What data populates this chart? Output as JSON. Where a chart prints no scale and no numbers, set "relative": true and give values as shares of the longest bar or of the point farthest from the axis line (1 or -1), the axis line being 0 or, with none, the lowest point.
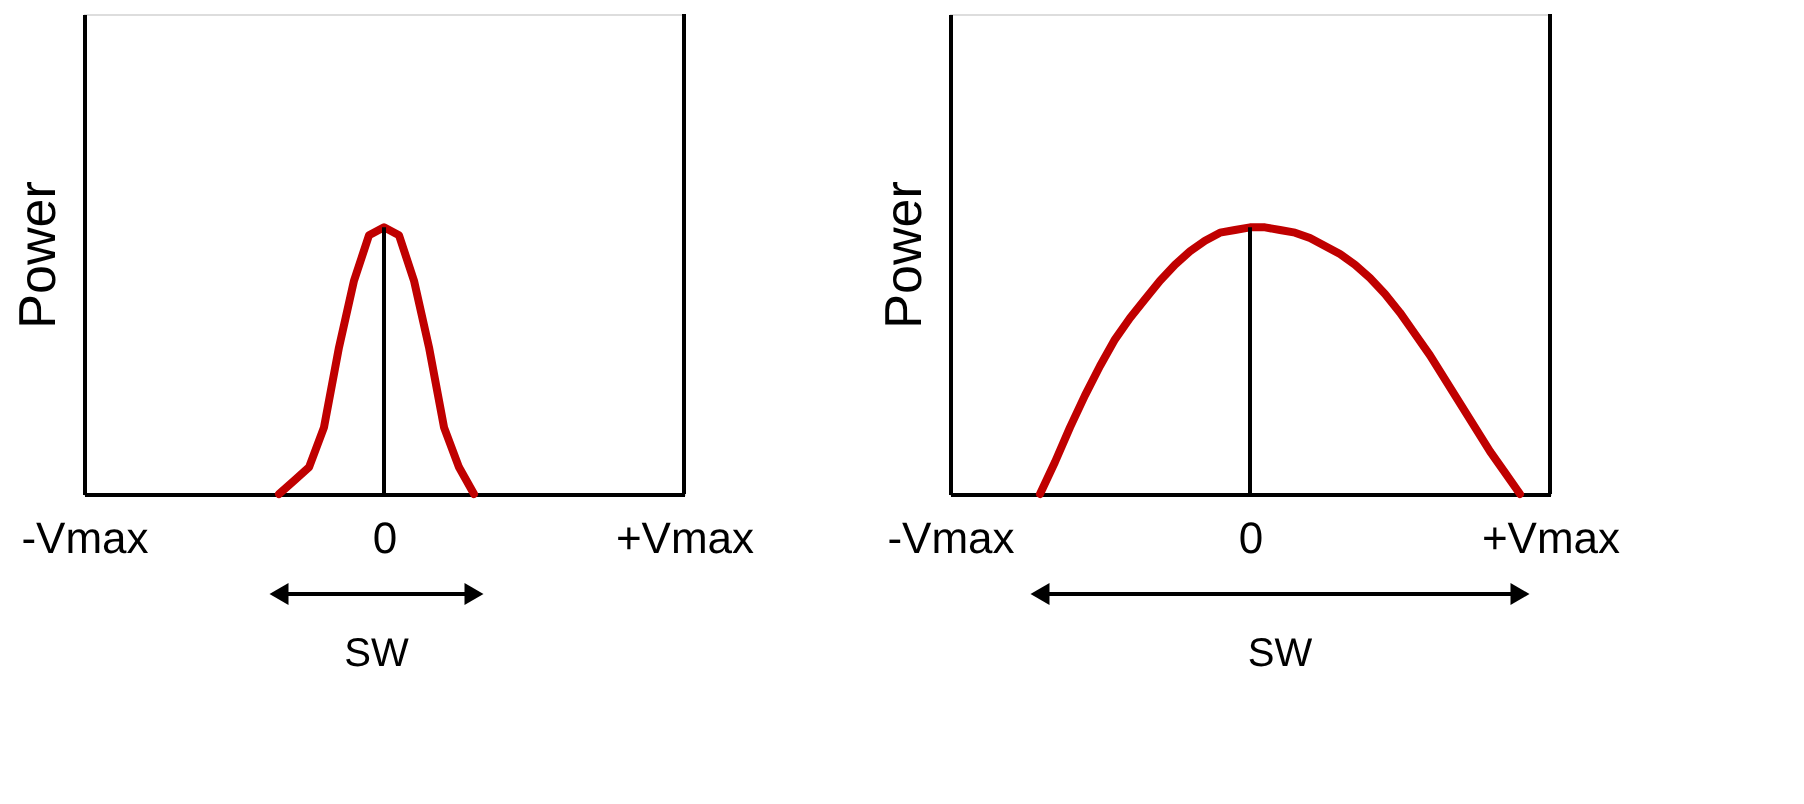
{
  "chart_data": [
    {
      "type": "line",
      "ylabel": "Power",
      "relative": true,
      "tick_labels": "x",
      "categories": [
        "-Vmax",
        null,
        null,
        null,
        null,
        null,
        null,
        null,
        null,
        null,
        null,
        null,
        null,
        null,
        null,
        null,
        null,
        null,
        null,
        null,
        "0",
        null,
        null,
        null,
        null,
        null,
        null,
        null,
        null,
        null,
        null,
        null,
        null,
        null,
        null,
        null,
        null,
        null,
        null,
        null,
        "+Vmax"
      ],
      "series": [
        {
          "color": "#c00000",
          "values": [
            null,
            null,
            null,
            null,
            null,
            null,
            null,
            null,
            null,
            null,
            null,
            null,
            null,
            0,
            0.05,
            0.1,
            0.25,
            0.55,
            0.8,
            0.97,
            1,
            0.97,
            0.8,
            0.55,
            0.25,
            0.1,
            0,
            null,
            null,
            null,
            null,
            null,
            null,
            null,
            null,
            null,
            null,
            null,
            null,
            null,
            null
          ]
        }
      ],
      "ref_lines": [
        {
          "axis": "x",
          "value": "0",
          "color": "#000000"
        }
      ],
      "annotations": [
        "SW"
      ]
    },
    {
      "type": "line",
      "ylabel": "Power",
      "relative": true,
      "tick_labels": "x",
      "categories": [
        "-Vmax",
        null,
        null,
        null,
        null,
        null,
        null,
        null,
        null,
        null,
        null,
        null,
        null,
        null,
        null,
        null,
        null,
        null,
        null,
        null,
        "0",
        null,
        null,
        null,
        null,
        null,
        null,
        null,
        null,
        null,
        null,
        null,
        null,
        null,
        null,
        null,
        null,
        null,
        null,
        null,
        "+Vmax"
      ],
      "series": [
        {
          "color": "#c00000",
          "values": [
            null,
            null,
            null,
            null,
            null,
            null,
            0,
            0.12,
            0.25,
            0.37,
            0.48,
            0.58,
            0.66,
            0.73,
            0.8,
            0.86,
            0.91,
            0.95,
            0.98,
            0.99,
            1,
            1,
            0.99,
            0.98,
            0.96,
            0.93,
            0.9,
            0.86,
            0.81,
            0.75,
            0.68,
            0.6,
            0.52,
            0.43,
            0.34,
            0.25,
            0.16,
            0.08,
            0,
            null,
            null
          ]
        }
      ],
      "ref_lines": [
        {
          "axis": "x",
          "value": "0",
          "color": "#000000"
        }
      ],
      "annotations": [
        "SW"
      ]
    }
  ]
}
